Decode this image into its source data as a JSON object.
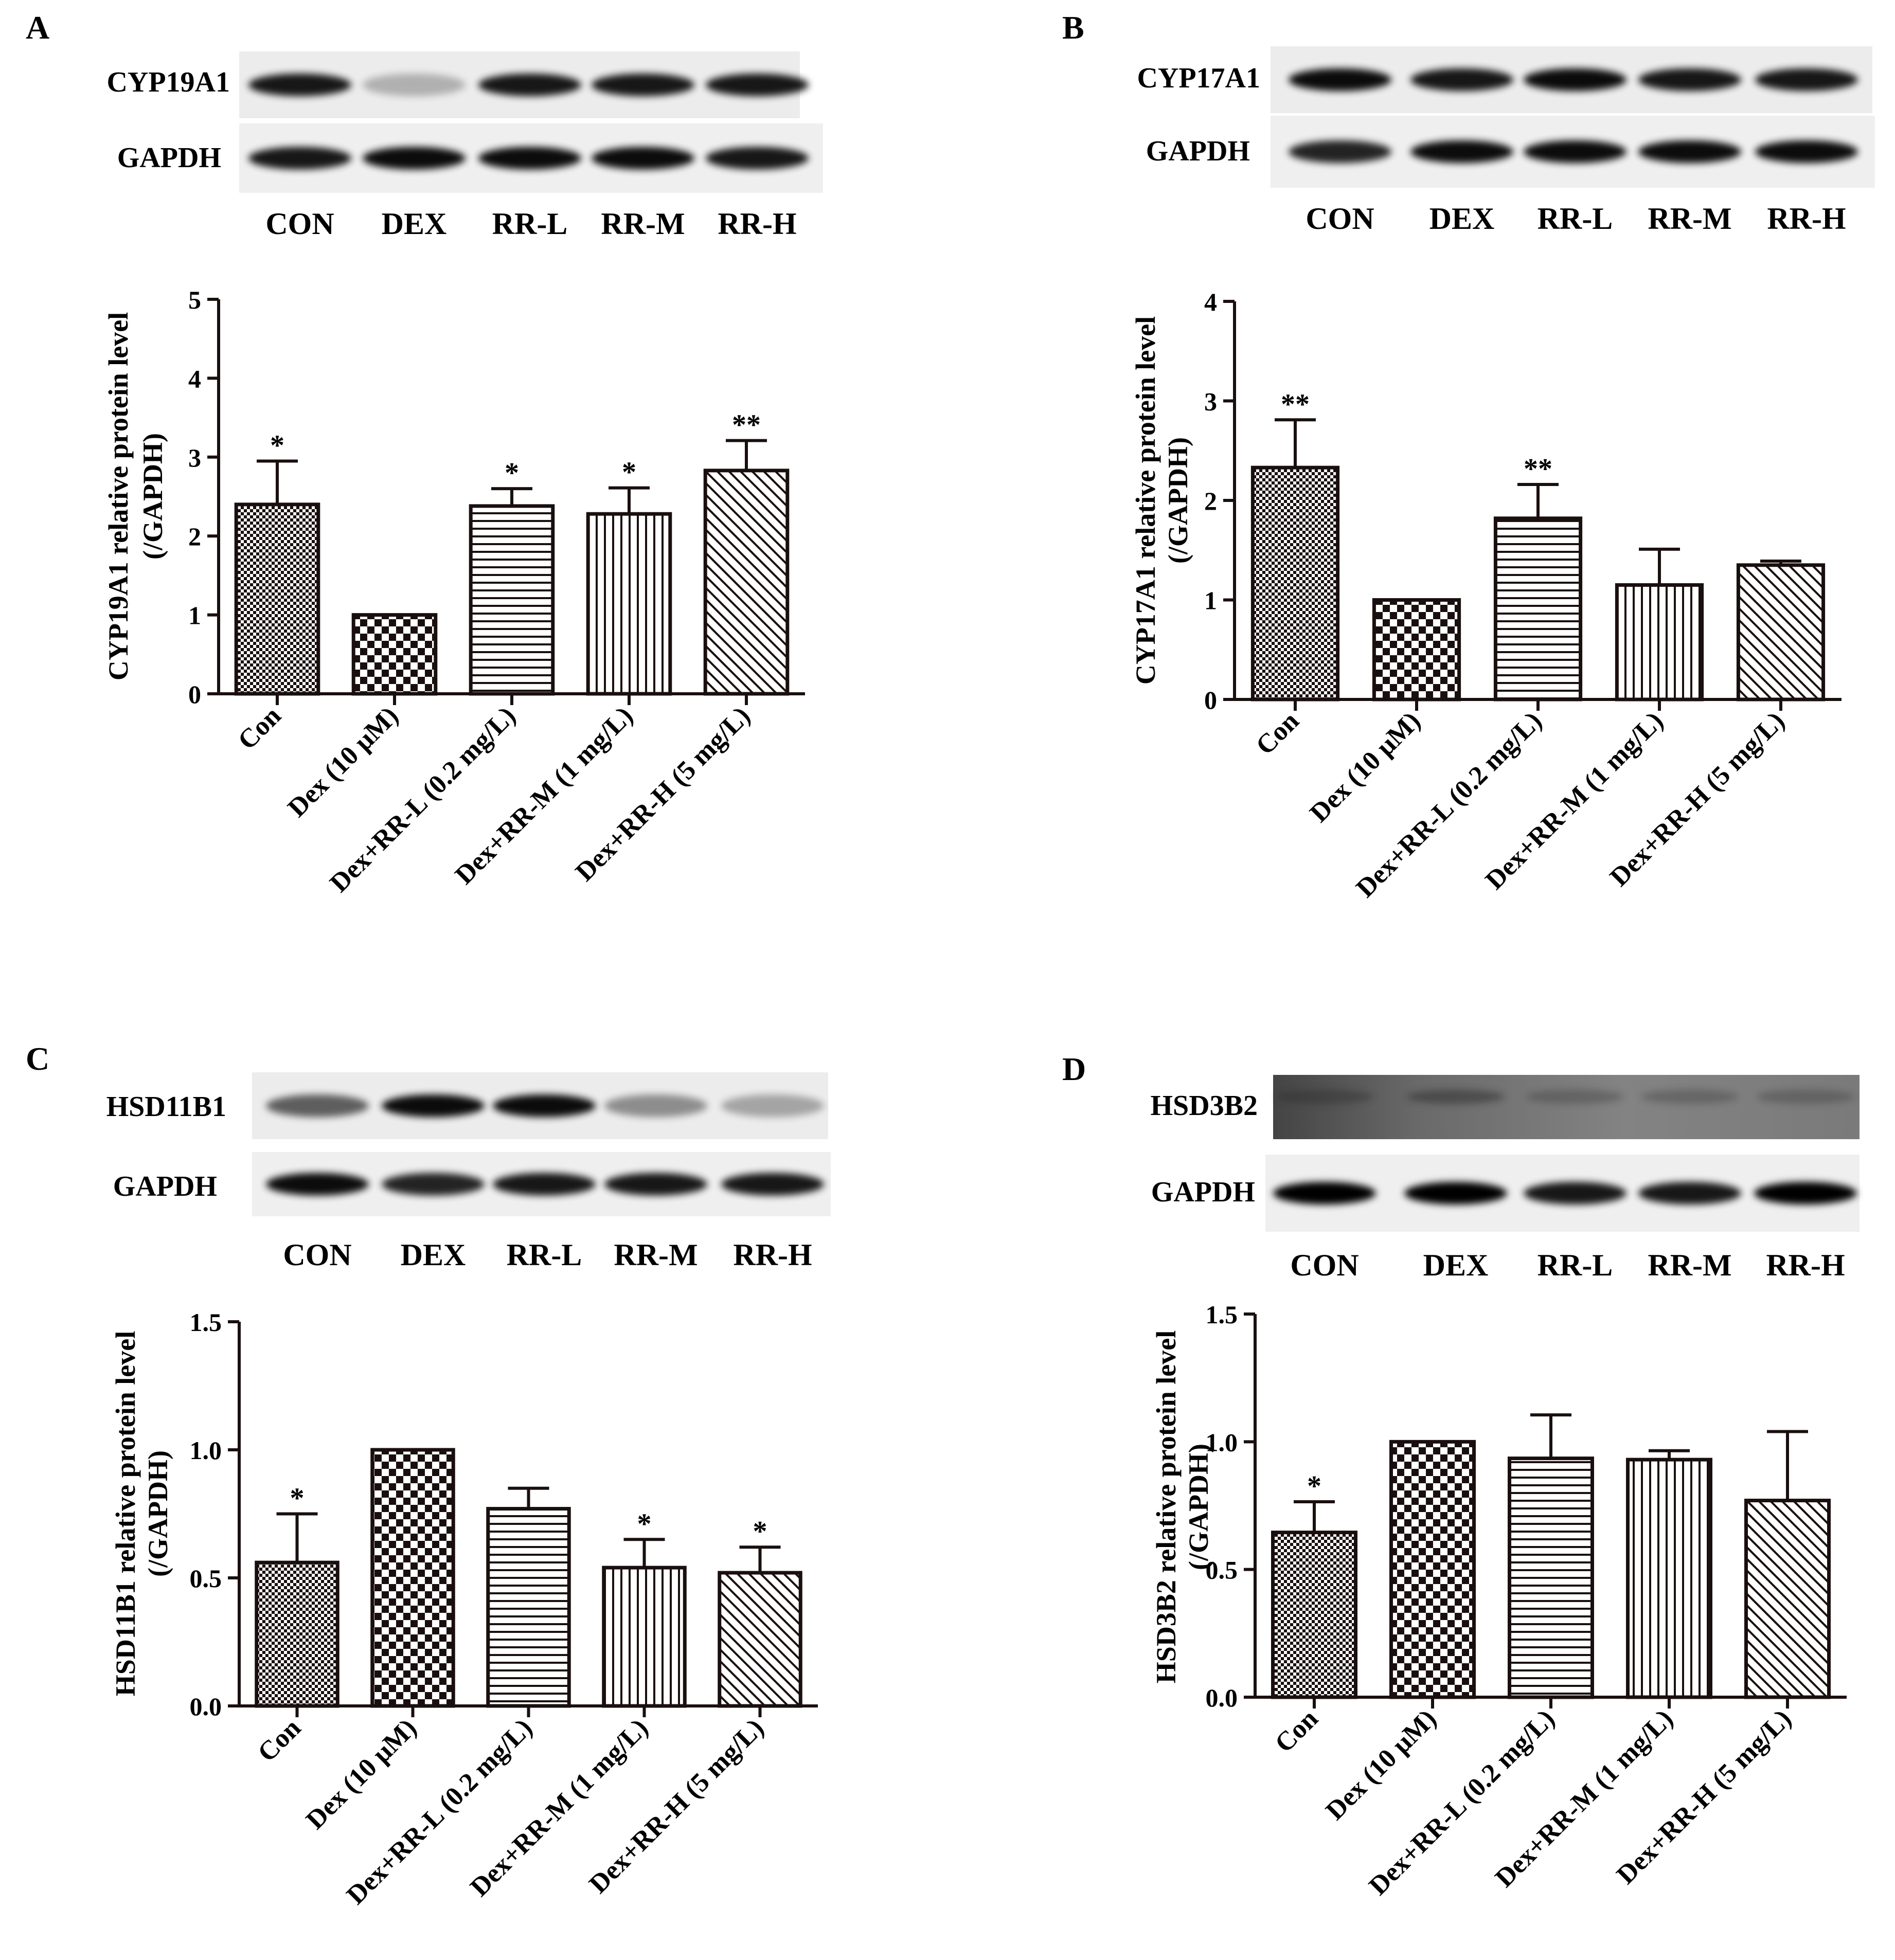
{
  "band_labels": [
    "CON",
    "DEX",
    "RR-L",
    "RR-M",
    "RR-H"
  ],
  "categories": [
    "Con",
    "Dex (10 μM)",
    "Dex+RR-L (0.2 mg/L)",
    "Dex+RR-M (1 mg/L)",
    "Dex+RR-H (5 mg/L)"
  ],
  "bar_colors": {
    "stroke": "#1a0f0f",
    "fill": "#1a0f0f"
  },
  "patterns": [
    "checker-fine",
    "checker-coarse",
    "horizontal-lines",
    "vertical-lines",
    "diagonal-lines"
  ],
  "panels": [
    {
      "letter": "A",
      "protein": "CYP19A1",
      "control": "GAPDH",
      "blot_style": "light"
    },
    {
      "letter": "B",
      "protein": "CYP17A1",
      "control": "GAPDH",
      "blot_style": "light"
    },
    {
      "letter": "C",
      "protein": "HSD11B1",
      "control": "GAPDH",
      "blot_style": "light"
    },
    {
      "letter": "D",
      "protein": "HSD3B2",
      "control": "GAPDH",
      "blot_style": "dark"
    }
  ],
  "chart_data": [
    {
      "type": "bar",
      "ylabel": "CYP19A1 relative protein level",
      "ylabel2": "(/GAPDH)",
      "ylim": [
        0,
        5
      ],
      "yticks": [
        "0",
        "1",
        "2",
        "3",
        "4",
        "5"
      ],
      "values": [
        2.4,
        1.0,
        2.38,
        2.28,
        2.83
      ],
      "errors": [
        0.55,
        0.0,
        0.22,
        0.33,
        0.38
      ],
      "significance": [
        "*",
        "",
        "*",
        "*",
        "**"
      ]
    },
    {
      "type": "bar",
      "ylabel": "CYP17A1 relative protein level",
      "ylabel2": "(/GAPDH)",
      "ylim": [
        0,
        4
      ],
      "yticks": [
        "0",
        "1",
        "2",
        "3",
        "4"
      ],
      "values": [
        2.33,
        1.0,
        1.82,
        1.15,
        1.35
      ],
      "errors": [
        0.48,
        0.0,
        0.34,
        0.36,
        0.04
      ],
      "significance": [
        "**",
        "",
        "**",
        "",
        ""
      ]
    },
    {
      "type": "bar",
      "ylabel": "HSD11B1 relative protein level",
      "ylabel2": "(/GAPDH)",
      "ylim": [
        0,
        1.5
      ],
      "yticks": [
        "0.0",
        "0.5",
        "1.0",
        "1.5"
      ],
      "values": [
        0.56,
        1.0,
        0.77,
        0.54,
        0.52
      ],
      "errors": [
        0.19,
        0.0,
        0.08,
        0.11,
        0.1
      ],
      "significance": [
        "*",
        "",
        "",
        "*",
        "*"
      ]
    },
    {
      "type": "bar",
      "ylabel": "HSD3B2 relative protein level",
      "ylabel2": "(/GAPDH)",
      "ylim": [
        0,
        1.5
      ],
      "yticks": [
        "0.0",
        "0.5",
        "1.0",
        "1.5"
      ],
      "values": [
        0.645,
        1.0,
        0.935,
        0.93,
        0.77
      ],
      "errors": [
        0.12,
        0.0,
        0.17,
        0.035,
        0.27
      ],
      "significance": [
        "*",
        "",
        "",
        "",
        ""
      ]
    }
  ]
}
